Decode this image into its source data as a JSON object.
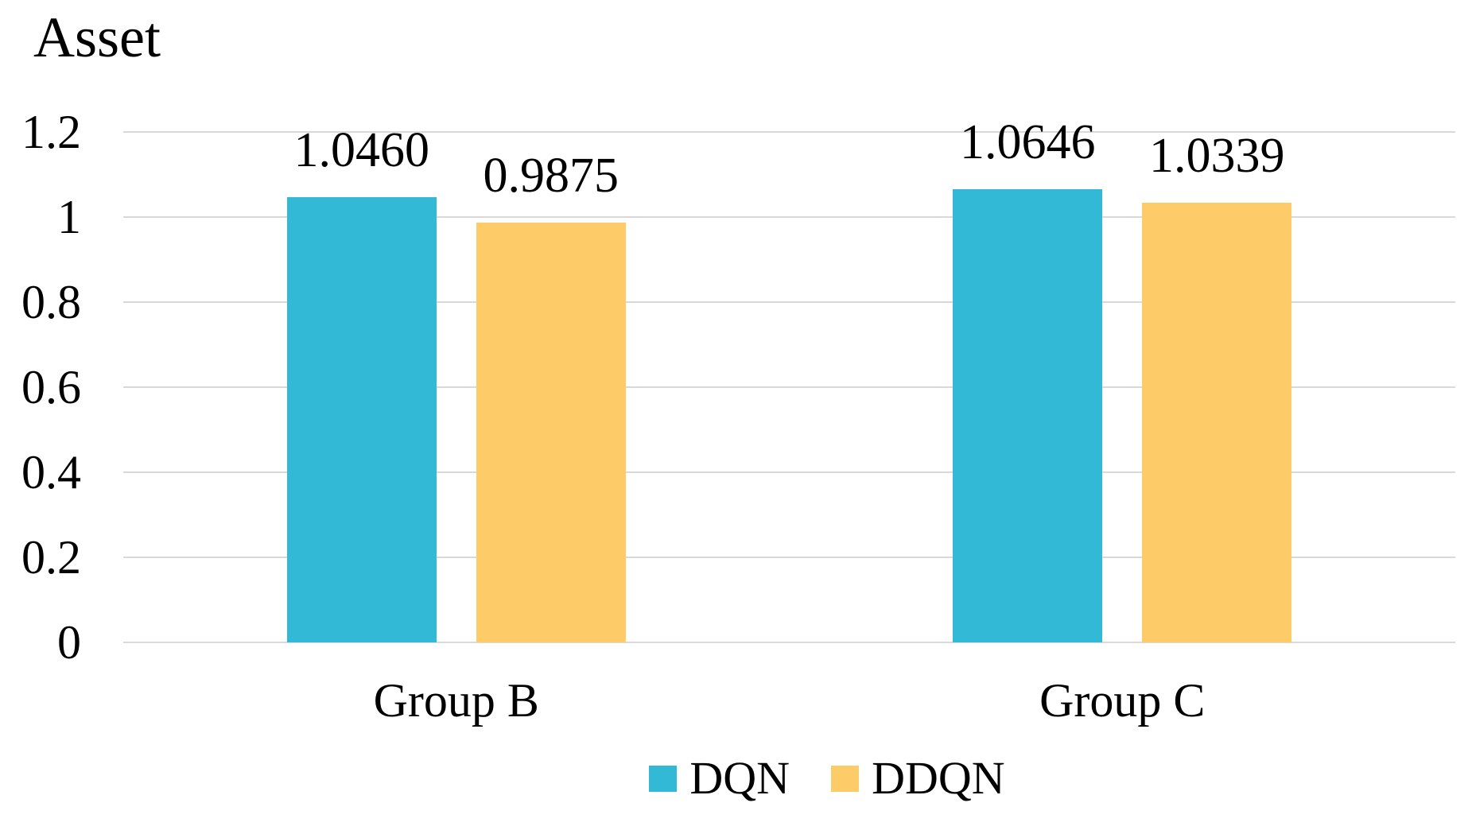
{
  "chart_data": {
    "type": "bar",
    "title": "Asset",
    "xlabel": "",
    "ylabel": "",
    "categories": [
      "Group B",
      "Group C"
    ],
    "series": [
      {
        "name": "DQN",
        "color": "#31b9d5",
        "values": [
          1.046,
          1.0646
        ],
        "value_labels": [
          "1.0460",
          "1.0646"
        ]
      },
      {
        "name": "DDQN",
        "color": "#fdcc68",
        "values": [
          0.9875,
          1.0339
        ],
        "value_labels": [
          "0.9875",
          "1.0339"
        ]
      }
    ],
    "ylim": [
      0,
      1.2
    ],
    "yticks": [
      0,
      0.2,
      0.4,
      0.6,
      0.8,
      1,
      1.2
    ],
    "ytick_labels": [
      "0",
      "0.2",
      "0.4",
      "0.6",
      "0.8",
      "1",
      "1.2"
    ],
    "grid": true,
    "gridline_color": "#d9d9d9",
    "text_color": "#000000",
    "background_color": "#ffffff",
    "legend_position": "bottom"
  }
}
